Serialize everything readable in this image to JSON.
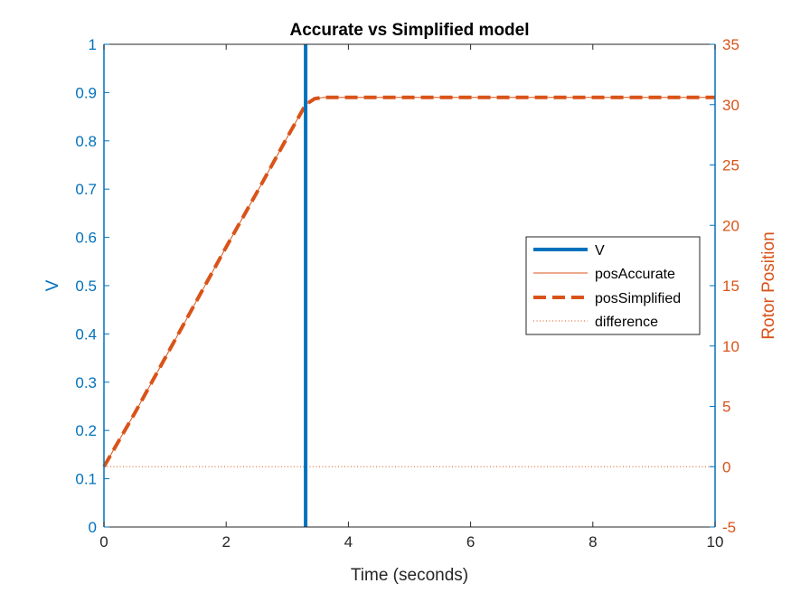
{
  "chart_data": {
    "type": "line",
    "title": "Accurate vs Simplified model",
    "xlabel": "Time (seconds)",
    "ylabel_left": "V",
    "ylabel_right": "Rotor Position",
    "xlim": [
      0,
      10
    ],
    "ylim_left": [
      0,
      1
    ],
    "ylim_right": [
      -5,
      35
    ],
    "x_ticks": [
      "0",
      "2",
      "4",
      "6",
      "8",
      "10"
    ],
    "y_ticks_left": [
      "0",
      "0.1",
      "0.2",
      "0.3",
      "0.4",
      "0.5",
      "0.6",
      "0.7",
      "0.8",
      "0.9",
      "1"
    ],
    "y_ticks_right": [
      "-5",
      "0",
      "5",
      "10",
      "15",
      "20",
      "25",
      "30",
      "35"
    ],
    "grid": false,
    "legend_position": "right",
    "series": [
      {
        "name": "V",
        "axis": "left",
        "color": "#0072BD",
        "style": "solid-thick",
        "x": [
          3.3,
          3.3
        ],
        "y": [
          0,
          1
        ]
      },
      {
        "name": "posAccurate",
        "axis": "right",
        "color": "#D95319",
        "style": "solid-thin",
        "x": [
          0,
          0.5,
          1,
          1.5,
          2,
          2.5,
          3,
          3.3,
          3.45,
          3.6,
          4,
          6,
          8,
          10
        ],
        "y": [
          0,
          4.4,
          9.0,
          13.6,
          18.2,
          22.7,
          27.3,
          30.0,
          30.5,
          30.6,
          30.6,
          30.6,
          30.6,
          30.6
        ]
      },
      {
        "name": "posSimplified",
        "axis": "right",
        "color": "#D95319",
        "style": "dashed-thick",
        "x": [
          0,
          0.5,
          1,
          1.5,
          2,
          2.5,
          3,
          3.3,
          3.45,
          3.6,
          4,
          6,
          8,
          10
        ],
        "y": [
          0,
          4.4,
          9.0,
          13.6,
          18.2,
          22.7,
          27.3,
          30.0,
          30.5,
          30.6,
          30.6,
          30.6,
          30.6,
          30.6
        ]
      },
      {
        "name": "difference",
        "axis": "right",
        "color": "#D95319",
        "style": "dotted",
        "x": [
          0,
          10
        ],
        "y": [
          0,
          0
        ]
      }
    ]
  },
  "colors": {
    "left_axis": "#0072BD",
    "right_axis": "#D95319"
  }
}
